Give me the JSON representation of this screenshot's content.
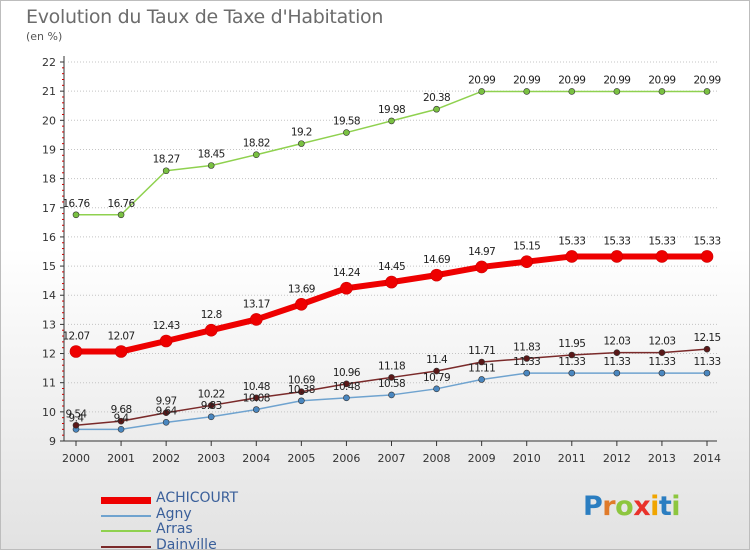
{
  "title": "Evolution du Taux de Taxe d'Habitation",
  "subtitle": "(en %)",
  "logo": {
    "text": "Proxiti",
    "letters": [
      {
        "ch": "P",
        "color": "#2b7ec1"
      },
      {
        "ch": "r",
        "color": "#e07b2a"
      },
      {
        "ch": "o",
        "color": "#8dc63f"
      },
      {
        "ch": "x",
        "color": "#e9322b"
      },
      {
        "ch": "i",
        "color": "#f0a500"
      },
      {
        "ch": "t",
        "color": "#2b7ec1"
      },
      {
        "ch": "i",
        "color": "#8dc63f"
      }
    ]
  },
  "chart_data": {
    "type": "line",
    "x": [
      "2000",
      "2001",
      "2002",
      "2003",
      "2004",
      "2005",
      "2006",
      "2007",
      "2008",
      "2009",
      "2010",
      "2011",
      "2012",
      "2013",
      "2014"
    ],
    "ylim": [
      9,
      22
    ],
    "yticks": [
      "9",
      "10",
      "11",
      "12",
      "13",
      "14",
      "15",
      "16",
      "17",
      "18",
      "19",
      "20",
      "21",
      "22"
    ],
    "grid": "horizontal dotted",
    "legend_position": "bottom-left",
    "series": [
      {
        "name": "ACHICOURT",
        "color": "#ee0000",
        "marker_color": "#ee0000",
        "width": 6,
        "marker_r": 6,
        "values": [
          12.07,
          12.07,
          12.43,
          12.8,
          13.17,
          13.69,
          14.24,
          14.45,
          14.69,
          14.97,
          15.15,
          15.33,
          15.33,
          15.33,
          15.33
        ],
        "labels": [
          "12.07",
          "12.07",
          "12.43",
          "12.8",
          "13.17",
          "13.69",
          "14.24",
          "14.45",
          "14.69",
          "14.97",
          "15.15",
          "15.33",
          "15.33",
          "15.33",
          "15.33"
        ],
        "label_pos": "above"
      },
      {
        "name": "Agny",
        "color": "#6fa3cf",
        "marker_color": "#4a87c0",
        "width": 1.5,
        "marker_r": 3,
        "values": [
          9.4,
          9.4,
          9.64,
          9.83,
          10.08,
          10.38,
          10.48,
          10.58,
          10.79,
          11.11,
          11.33,
          11.33,
          11.33,
          11.33,
          11.33
        ],
        "labels": [
          "9.4",
          "9.4",
          "9.64",
          "9.83",
          "10.08",
          "10.38",
          "10.48",
          "10.58",
          "10.79",
          "11.11",
          "11.33",
          "11.33",
          "11.33",
          "11.33",
          "11.33"
        ],
        "label_pos": "above-near"
      },
      {
        "name": "Arras",
        "color": "#8fd14f",
        "marker_color": "#7ac142",
        "width": 1.5,
        "marker_r": 3,
        "values": [
          16.76,
          16.76,
          18.27,
          18.45,
          18.82,
          19.2,
          19.58,
          19.98,
          20.38,
          20.99,
          20.99,
          20.99,
          20.99,
          20.99,
          20.99
        ],
        "labels": [
          "16.76",
          "16.76",
          "18.27",
          "18.45",
          "18.82",
          "19.2",
          "19.58",
          "19.98",
          "20.38",
          "20.99",
          "20.99",
          "20.99",
          "20.99",
          "20.99",
          "20.99"
        ],
        "label_pos": "above"
      },
      {
        "name": "Dainville",
        "color": "#7a2a2a",
        "marker_color": "#5a1818",
        "width": 1.5,
        "marker_r": 3,
        "values": [
          9.54,
          9.68,
          9.97,
          10.22,
          10.48,
          10.69,
          10.96,
          11.18,
          11.4,
          11.71,
          11.83,
          11.95,
          12.03,
          12.03,
          12.15
        ],
        "labels": [
          "9.54",
          "9.68",
          "9.97",
          "10.22",
          "10.48",
          "10.69",
          "10.96",
          "11.18",
          "11.4",
          "11.71",
          "11.83",
          "11.95",
          "12.03",
          "12.03",
          "12.15"
        ],
        "label_pos": "above"
      }
    ]
  }
}
